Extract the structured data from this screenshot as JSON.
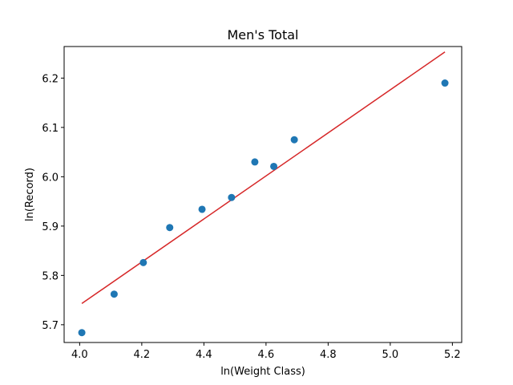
{
  "chart_data": {
    "type": "scatter",
    "title": "Men's Total",
    "xlabel": "ln(Weight Class)",
    "ylabel": "ln(Record)",
    "xlim": [
      3.95,
      5.23
    ],
    "ylim": [
      5.664,
      6.264
    ],
    "xticks": [
      4.0,
      4.2,
      4.4,
      4.6,
      4.8,
      5.0,
      5.2
    ],
    "xtick_labels": [
      "4.0",
      "4.2",
      "4.4",
      "4.6",
      "4.8",
      "5.0",
      "5.2"
    ],
    "yticks": [
      5.7,
      5.8,
      5.9,
      6.0,
      6.1,
      6.2
    ],
    "ytick_labels": [
      "5.7",
      "5.8",
      "5.9",
      "6.0",
      "6.1",
      "6.2"
    ],
    "grid": false,
    "colors": {
      "points": "#1f77b4",
      "fit_line": "#d62728"
    },
    "points": [
      {
        "x": 4.007,
        "y": 5.684
      },
      {
        "x": 4.111,
        "y": 5.762
      },
      {
        "x": 4.205,
        "y": 5.826
      },
      {
        "x": 4.29,
        "y": 5.897
      },
      {
        "x": 4.394,
        "y": 5.934
      },
      {
        "x": 4.489,
        "y": 5.958
      },
      {
        "x": 4.564,
        "y": 6.03
      },
      {
        "x": 4.625,
        "y": 6.021
      },
      {
        "x": 4.691,
        "y": 6.075
      },
      {
        "x": 5.176,
        "y": 6.19
      }
    ],
    "fit_line": {
      "x": [
        4.007,
        5.176
      ],
      "y": [
        5.743,
        6.253
      ]
    }
  }
}
